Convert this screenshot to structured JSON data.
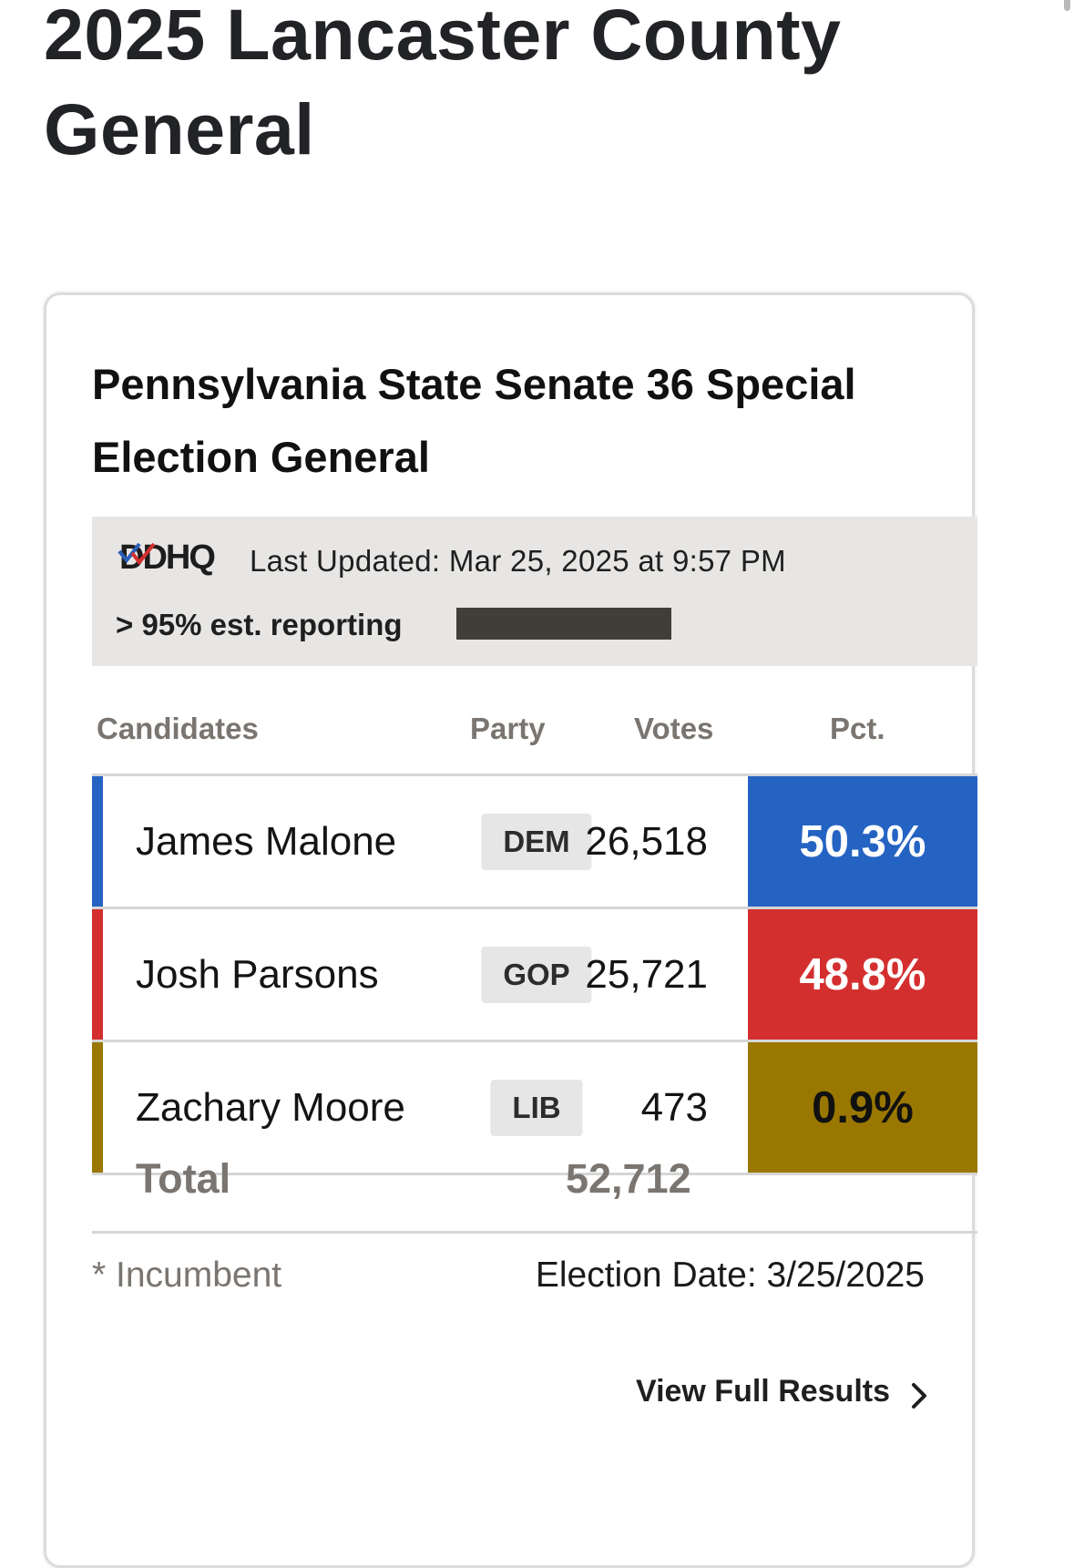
{
  "page": {
    "title": "2025 Lancaster County General"
  },
  "race": {
    "title": "Pennsylvania State Senate 36 Special Election General",
    "status": {
      "source_logo": "DDHQ",
      "last_updated": "Last Updated: Mar 25, 2025 at 9:57 PM",
      "reporting_label": "> 95% est. reporting",
      "reporting_fraction": 1.0
    },
    "columns": {
      "candidates": "Candidates",
      "party": "Party",
      "votes": "Votes",
      "pct": "Pct."
    },
    "candidates": [
      {
        "name": "James Malone",
        "party": "DEM",
        "votes": "26,518",
        "pct": "50.3%",
        "color": "#2563c3",
        "text_color": "#ffffff"
      },
      {
        "name": "Josh Parsons",
        "party": "GOP",
        "votes": "25,721",
        "pct": "48.8%",
        "color": "#d42f2f",
        "text_color": "#ffffff"
      },
      {
        "name": "Zachary Moore",
        "party": "LIB",
        "votes": "473",
        "pct": "0.9%",
        "color": "#9a7800",
        "text_color": "#111111"
      }
    ],
    "total": {
      "label": "Total",
      "votes": "52,712"
    },
    "footer": {
      "incumbent_note": "* Incumbent",
      "election_date": "Election Date: 3/25/2025",
      "full_results_link": "View Full Results"
    }
  },
  "icons": {
    "logo_check": "checkmark-icon",
    "link_arrow": "chevron-right-icon"
  }
}
